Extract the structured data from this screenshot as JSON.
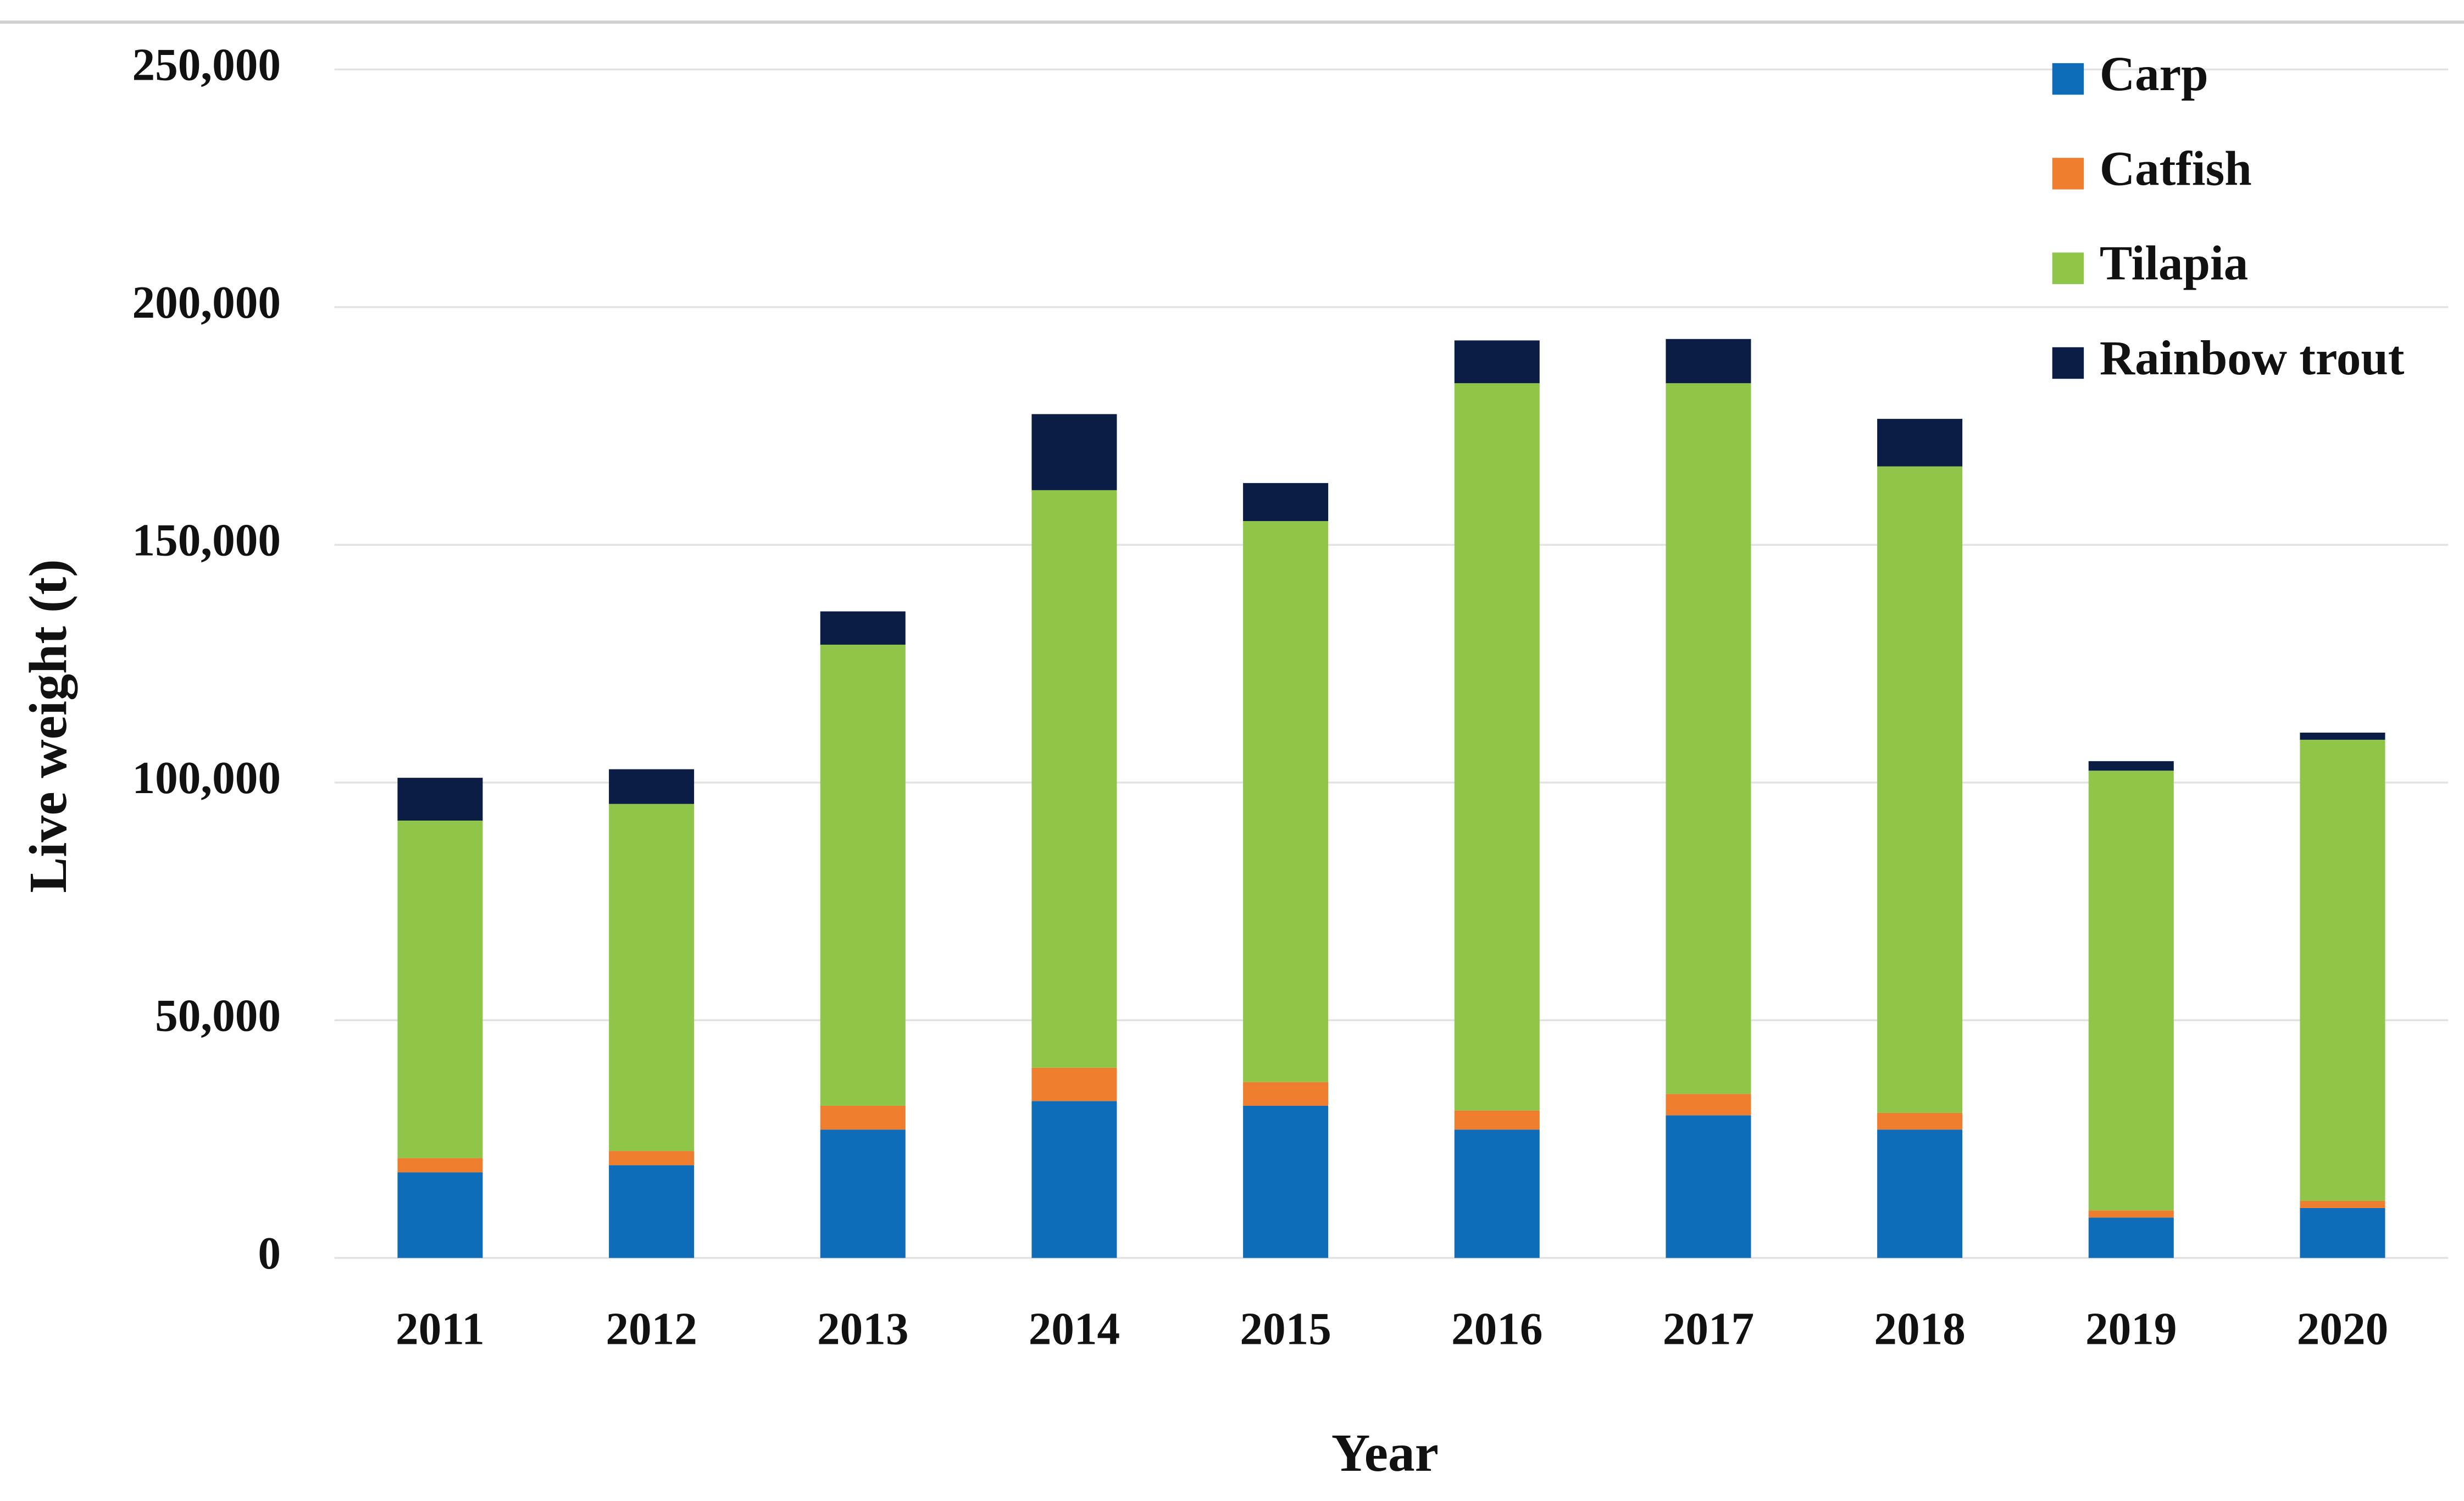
{
  "chart_data": {
    "type": "stacked_bar",
    "x_label": "Year",
    "y_label": "Live weight (t)",
    "categories": [
      "2011",
      "2012",
      "2013",
      "2014",
      "2015",
      "2016",
      "2017",
      "2018",
      "2019",
      "2020"
    ],
    "series": [
      {
        "name": "Carp",
        "color": "#0f6cb8",
        "values": [
          18000,
          19500,
          27000,
          33000,
          32000,
          27000,
          30000,
          27000,
          8500,
          10500
        ]
      },
      {
        "name": "Catfish",
        "color": "#ee7d2e",
        "values": [
          3000,
          3000,
          5000,
          7000,
          5000,
          4000,
          4500,
          3500,
          1500,
          1500
        ]
      },
      {
        "name": "Tilapia",
        "color": "#8fc64a",
        "values": [
          71000,
          73000,
          97000,
          121500,
          118000,
          153000,
          149500,
          136000,
          92500,
          97000
        ]
      },
      {
        "name": "Rainbow trout",
        "color": "#0b1d45",
        "values": [
          9000,
          7300,
          7000,
          16000,
          8000,
          9000,
          9300,
          10000,
          2000,
          1500
        ]
      }
    ],
    "ylim": [
      0,
      250000
    ],
    "yticks": [
      0,
      {
        "value": 50000,
        "label": "50,000"
      },
      {
        "value": 100000,
        "label": "100,000"
      },
      {
        "value": 150000,
        "label": "150,000"
      },
      {
        "value": 200000,
        "label": "200,000"
      },
      {
        "value": 250000,
        "label": "250,000"
      }
    ],
    "grid": true,
    "legend": "top-right"
  }
}
